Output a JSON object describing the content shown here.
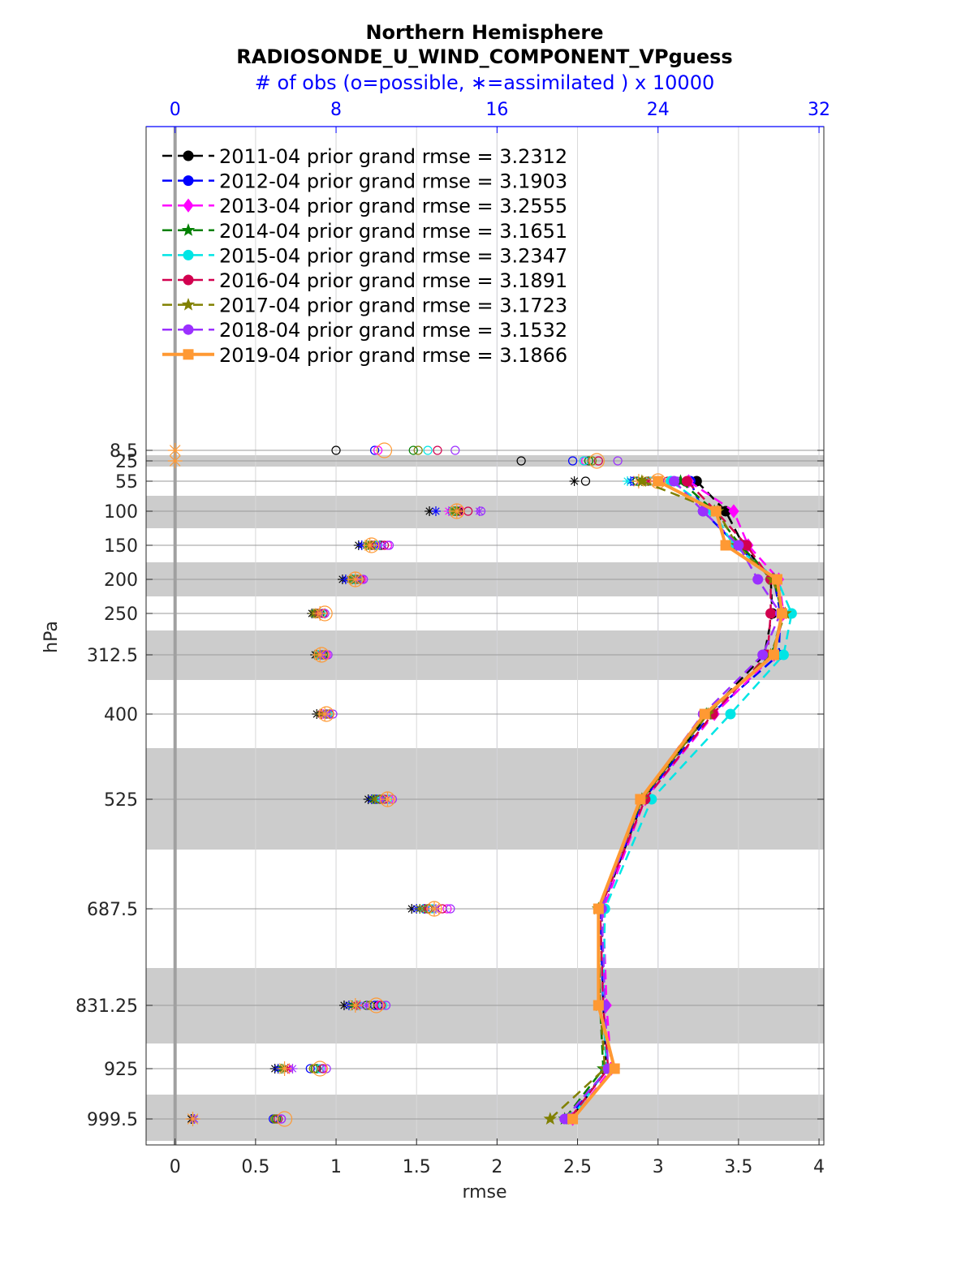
{
  "chart_data": {
    "type": "line",
    "title": "Northern Hemisphere",
    "subtitle": "RADIOSONDE_U_WIND_COMPONENT_VPguess",
    "top_axis_label": "# of obs (o=possible, ∗=assimilated ) x 10000",
    "xlabel": "rmse",
    "ylabel": "hPa",
    "xlim": [
      -0.18,
      4.03
    ],
    "x_ticks": [
      "0",
      "0.5",
      "1",
      "1.5",
      "2",
      "2.5",
      "3",
      "3.5",
      "4"
    ],
    "x_tick_values": [
      0,
      0.5,
      1,
      1.5,
      2,
      2.5,
      3,
      3.5,
      4
    ],
    "top_xlim": [
      -1.44,
      32.24
    ],
    "top_ticks": [
      "0",
      "8",
      "16",
      "24",
      "32"
    ],
    "top_tick_values": [
      0,
      8,
      16,
      24,
      32
    ],
    "y_levels": [
      8.5,
      25,
      55,
      100,
      150,
      200,
      250,
      312.5,
      400,
      525,
      687.5,
      831.25,
      925,
      999.5
    ],
    "y_tick_labels": [
      "8.5",
      "25",
      "55",
      "100",
      "150",
      "200",
      "250",
      "312.5",
      "400",
      "525",
      "687.5",
      "831.25",
      "925",
      "999.5"
    ],
    "grid": true,
    "legend_position": "top-left",
    "colors": {
      "band": "#cccccc",
      "grid": "#b8b8d8",
      "axis_blue": "#0000ff",
      "zero_line": "#a0a0a0"
    },
    "series": [
      {
        "name": "2011-04 prior grand rmse = 3.2312",
        "color": "#000000",
        "marker": "circle",
        "dashed": true,
        "values": [
          null,
          null,
          3.24,
          3.42,
          3.53,
          3.7,
          3.71,
          3.66,
          3.31,
          2.91,
          2.65,
          2.66,
          2.68,
          2.46
        ],
        "possible": [
          1.0,
          2.15,
          2.55,
          1.76,
          1.28,
          1.12,
          0.9,
          0.91,
          0.96,
          1.28,
          1.57,
          1.26,
          0.88,
          0.62
        ],
        "assimilated": [
          null,
          null,
          2.48,
          1.58,
          1.14,
          1.04,
          0.85,
          0.87,
          0.88,
          1.2,
          1.47,
          1.05,
          0.62,
          0.1
        ]
      },
      {
        "name": "2012-04 prior grand rmse = 3.1903",
        "color": "#0000ff",
        "marker": "circle",
        "dashed": true,
        "values": [
          null,
          null,
          3.2,
          3.28,
          3.49,
          3.72,
          3.76,
          3.75,
          3.33,
          2.91,
          2.64,
          2.66,
          2.69,
          2.44
        ],
        "possible": [
          1.24,
          2.47,
          2.85,
          1.72,
          1.23,
          1.13,
          0.89,
          0.92,
          0.94,
          1.25,
          1.55,
          1.24,
          0.84,
          0.61
        ],
        "assimilated": [
          null,
          null,
          2.83,
          1.62,
          1.16,
          1.06,
          0.87,
          0.88,
          0.9,
          1.22,
          1.5,
          1.08,
          0.64,
          0.11
        ]
      },
      {
        "name": "2013-04 prior grand rmse = 3.2555",
        "color": "#ff00ff",
        "marker": "diamond",
        "dashed": true,
        "values": [
          null,
          null,
          3.19,
          3.47,
          3.56,
          3.75,
          3.78,
          3.72,
          3.35,
          2.92,
          2.66,
          2.68,
          2.71,
          2.47
        ],
        "possible": [
          1.26,
          2.55,
          2.95,
          1.77,
          1.32,
          1.16,
          0.92,
          0.94,
          0.96,
          1.33,
          1.69,
          1.27,
          0.91,
          0.66
        ],
        "assimilated": [
          null,
          null,
          2.9,
          1.7,
          1.23,
          1.1,
          0.89,
          0.9,
          0.92,
          1.27,
          1.57,
          1.15,
          0.71,
          0.12
        ]
      },
      {
        "name": "2014-04 prior grand rmse = 3.1651",
        "color": "#008000",
        "marker": "star",
        "dashed": true,
        "values": [
          null,
          null,
          3.14,
          3.35,
          3.51,
          3.72,
          3.77,
          3.71,
          3.3,
          2.9,
          2.63,
          2.64,
          2.66,
          2.42
        ],
        "possible": [
          1.48,
          2.57,
          2.87,
          1.75,
          1.25,
          1.12,
          0.9,
          0.92,
          0.95,
          1.28,
          1.58,
          1.19,
          0.87,
          0.63
        ],
        "assimilated": [
          null,
          null,
          2.9,
          1.74,
          1.19,
          1.1,
          0.87,
          0.89,
          0.91,
          1.23,
          1.52,
          1.1,
          0.66,
          0.11
        ]
      },
      {
        "name": "2015-04 prior grand rmse = 3.2347",
        "color": "#00e5e5",
        "marker": "circle",
        "dashed": true,
        "values": [
          null,
          null,
          3.08,
          3.34,
          3.47,
          3.74,
          3.83,
          3.78,
          3.45,
          2.96,
          2.67,
          2.66,
          2.68,
          2.46
        ],
        "possible": [
          1.57,
          2.54,
          2.95,
          1.73,
          1.26,
          1.14,
          0.91,
          0.93,
          0.95,
          1.32,
          1.6,
          1.29,
          0.9,
          0.64
        ],
        "assimilated": [
          null,
          null,
          2.81,
          1.72,
          1.2,
          1.11,
          0.88,
          0.89,
          0.93,
          1.26,
          1.54,
          1.14,
          0.68,
          0.12
        ]
      },
      {
        "name": "2016-04 prior grand rmse = 3.1891",
        "color": "#d2004f",
        "marker": "circle",
        "dashed": true,
        "values": [
          null,
          null,
          3.18,
          3.36,
          3.55,
          3.7,
          3.7,
          3.68,
          3.34,
          2.92,
          2.64,
          2.66,
          2.69,
          2.45
        ],
        "possible": [
          1.63,
          2.63,
          3.06,
          1.82,
          1.3,
          1.15,
          0.92,
          0.93,
          0.96,
          1.3,
          1.66,
          1.28,
          0.92,
          0.64
        ],
        "assimilated": [
          null,
          null,
          2.94,
          1.77,
          1.22,
          1.12,
          0.88,
          0.9,
          0.91,
          1.24,
          1.55,
          1.13,
          0.7,
          0.11
        ]
      },
      {
        "name": "2017-04 prior grand rmse = 3.1723",
        "color": "#808000",
        "marker": "star",
        "dashed": true,
        "values": [
          null,
          null,
          2.9,
          3.37,
          3.49,
          3.71,
          3.79,
          3.7,
          3.31,
          2.9,
          2.63,
          2.64,
          2.67,
          2.33
        ],
        "possible": [
          1.51,
          2.59,
          2.93,
          1.74,
          1.22,
          1.13,
          0.88,
          0.91,
          0.94,
          1.27,
          1.57,
          1.21,
          0.86,
          0.62
        ],
        "assimilated": [
          null,
          null,
          2.88,
          1.73,
          1.2,
          1.09,
          0.86,
          0.88,
          0.9,
          1.24,
          1.52,
          1.12,
          0.67,
          0.11
        ]
      },
      {
        "name": "2018-04 prior grand rmse = 3.1532",
        "color": "#9b30ff",
        "marker": "circle",
        "dashed": true,
        "values": [
          null,
          null,
          3.1,
          3.28,
          3.5,
          3.62,
          3.76,
          3.65,
          3.28,
          2.89,
          2.65,
          2.67,
          2.69,
          2.42
        ],
        "possible": [
          1.74,
          2.75,
          3.12,
          1.9,
          1.33,
          1.17,
          0.93,
          0.95,
          0.98,
          1.35,
          1.71,
          1.31,
          0.94,
          0.66
        ],
        "assimilated": [
          null,
          null,
          3.02,
          1.89,
          1.27,
          1.12,
          0.9,
          0.91,
          0.94,
          1.29,
          1.62,
          1.19,
          0.73,
          0.12
        ]
      },
      {
        "name": "2019-04 prior grand rmse = 3.1866",
        "color": "#ff9933",
        "marker": "square",
        "dashed": false,
        "values": [
          null,
          null,
          3.0,
          3.36,
          3.42,
          3.74,
          3.77,
          3.72,
          3.29,
          2.89,
          2.63,
          2.63,
          2.73,
          2.47
        ],
        "possible": [
          1.3,
          2.62,
          3.0,
          1.75,
          1.22,
          1.12,
          0.93,
          0.91,
          0.94,
          1.32,
          1.61,
          1.25,
          0.9,
          0.68
        ],
        "assimilated": [
          0.0,
          0.0,
          2.88,
          1.75,
          1.21,
          1.12,
          0.9,
          0.9,
          0.93,
          1.32,
          1.61,
          1.12,
          0.68,
          0.11
        ]
      }
    ]
  }
}
